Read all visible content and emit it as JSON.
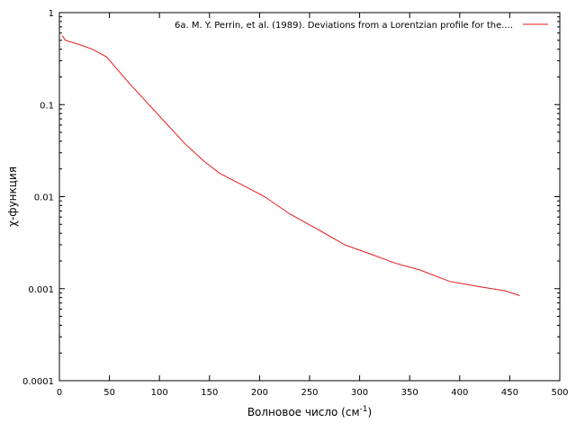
{
  "chart_data": {
    "type": "line",
    "title": "",
    "xlabel": "Волновое число (см",
    "xlabel_sup": "-1",
    "xlabel_close": ")",
    "ylabel": "χ-функция",
    "xlim": [
      0,
      500
    ],
    "ylim": [
      0.0001,
      1
    ],
    "yscale": "log",
    "grid": false,
    "legend_position": "top-right",
    "x_ticks": [
      0,
      50,
      100,
      150,
      200,
      250,
      300,
      350,
      400,
      450,
      500
    ],
    "y_ticks": [
      0.0001,
      0.001,
      0.01,
      0.1,
      1
    ],
    "x_tick_labels": [
      "0",
      "50",
      "100",
      "150",
      "200",
      "250",
      "300",
      "350",
      "400",
      "450",
      "500"
    ],
    "y_tick_labels": [
      "0.0001",
      "0.001",
      "0.01",
      "0.1",
      "1"
    ],
    "series": [
      {
        "name": "6a. M. Y. Perrin, et al. (1989). Deviations from a Lorentzian profile for the....",
        "color": "#e31a1c",
        "x": [
          3,
          6,
          20,
          33,
          47,
          70,
          100,
          125,
          145,
          160,
          185,
          205,
          230,
          260,
          285,
          310,
          335,
          360,
          390,
          420,
          445,
          460
        ],
        "y": [
          0.56,
          0.5,
          0.45,
          0.4,
          0.33,
          0.17,
          0.075,
          0.038,
          0.024,
          0.018,
          0.013,
          0.01,
          0.0065,
          0.0043,
          0.003,
          0.0024,
          0.0019,
          0.0016,
          0.0012,
          0.00105,
          0.00095,
          0.00084
        ]
      }
    ]
  }
}
